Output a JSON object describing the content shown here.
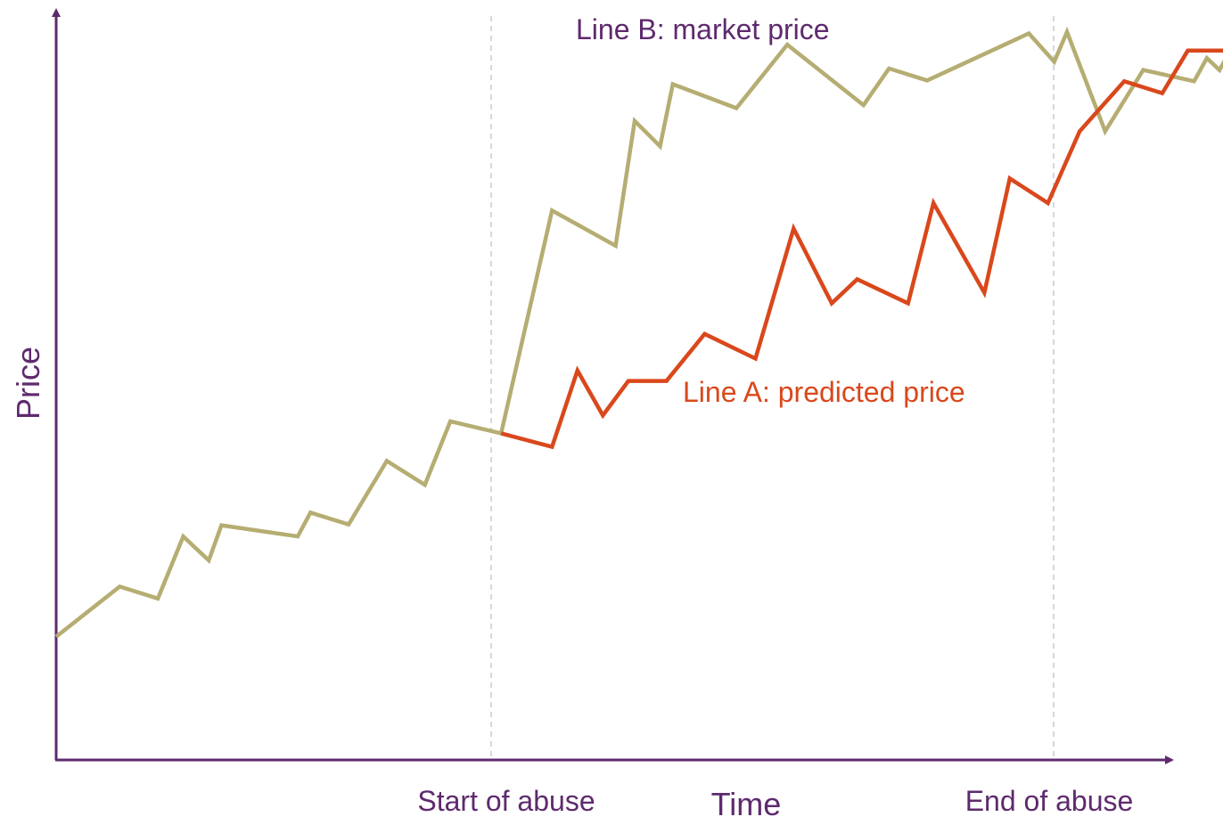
{
  "chart_data": {
    "type": "line",
    "xlabel": "Time",
    "ylabel": "Price",
    "x_ticks": [
      {
        "x": 35,
        "label": "Start of abuse"
      },
      {
        "x": 80,
        "label": "End of abuse"
      }
    ],
    "xlim": [
      0,
      91
    ],
    "ylim": [
      0,
      100
    ],
    "grid": false,
    "legend": "none",
    "series": [
      {
        "key": "B",
        "name": "Line B: market price",
        "color": "#b5ad72",
        "points": [
          [
            0,
            16.5
          ],
          [
            5,
            23.2
          ],
          [
            8,
            21.6
          ],
          [
            10,
            29.9
          ],
          [
            12,
            26.7
          ],
          [
            13,
            31.4
          ],
          [
            19,
            29.9
          ],
          [
            20,
            33.1
          ],
          [
            23,
            31.5
          ],
          [
            26,
            40.0
          ],
          [
            29,
            36.8
          ],
          [
            31,
            45.3
          ],
          [
            35,
            43.7
          ],
          [
            39,
            73.5
          ],
          [
            44,
            68.8
          ],
          [
            45.5,
            85.5
          ],
          [
            47.5,
            82.1
          ],
          [
            48.5,
            90.4
          ],
          [
            53.5,
            87.2
          ],
          [
            57.5,
            95.7
          ],
          [
            63.5,
            87.6
          ],
          [
            65.5,
            92.5
          ],
          [
            68.5,
            90.9
          ],
          [
            76.5,
            97.2
          ],
          [
            78.5,
            93.4
          ],
          [
            79.5,
            97.4
          ],
          [
            82.5,
            84.1
          ],
          [
            85.5,
            92.3
          ],
          [
            89.5,
            90.8
          ],
          [
            90.5,
            93.9
          ],
          [
            91.5,
            92.3
          ],
          [
            93,
            97.0
          ]
        ]
      },
      {
        "key": "A",
        "name": "Line A: predicted price",
        "color": "#d9481c",
        "points": [
          [
            35,
            43.7
          ],
          [
            39,
            41.9
          ],
          [
            41,
            52.1
          ],
          [
            43,
            46.1
          ],
          [
            45,
            50.7
          ],
          [
            48,
            50.7
          ],
          [
            51,
            57.0
          ],
          [
            55,
            53.7
          ],
          [
            58,
            71.1
          ],
          [
            61,
            61.1
          ],
          [
            63,
            64.3
          ],
          [
            67,
            61.1
          ],
          [
            69,
            74.5
          ],
          [
            73,
            62.5
          ],
          [
            75,
            77.8
          ],
          [
            78,
            74.5
          ],
          [
            80.5,
            84.1
          ],
          [
            84,
            90.8
          ],
          [
            87,
            89.2
          ],
          [
            89,
            94.9
          ],
          [
            92,
            94.9
          ]
        ]
      }
    ],
    "annotations": [
      {
        "text": "Line B: market price",
        "color": "#5e2a6e"
      },
      {
        "text": "Line A: predicted price",
        "color": "#d9481c"
      }
    ]
  },
  "colors": {
    "axis": "#5e2a6e",
    "text": "#5e2a6e",
    "vline": "#c9ccd6",
    "lineA": "#d9481c",
    "lineB": "#b5ad72"
  }
}
